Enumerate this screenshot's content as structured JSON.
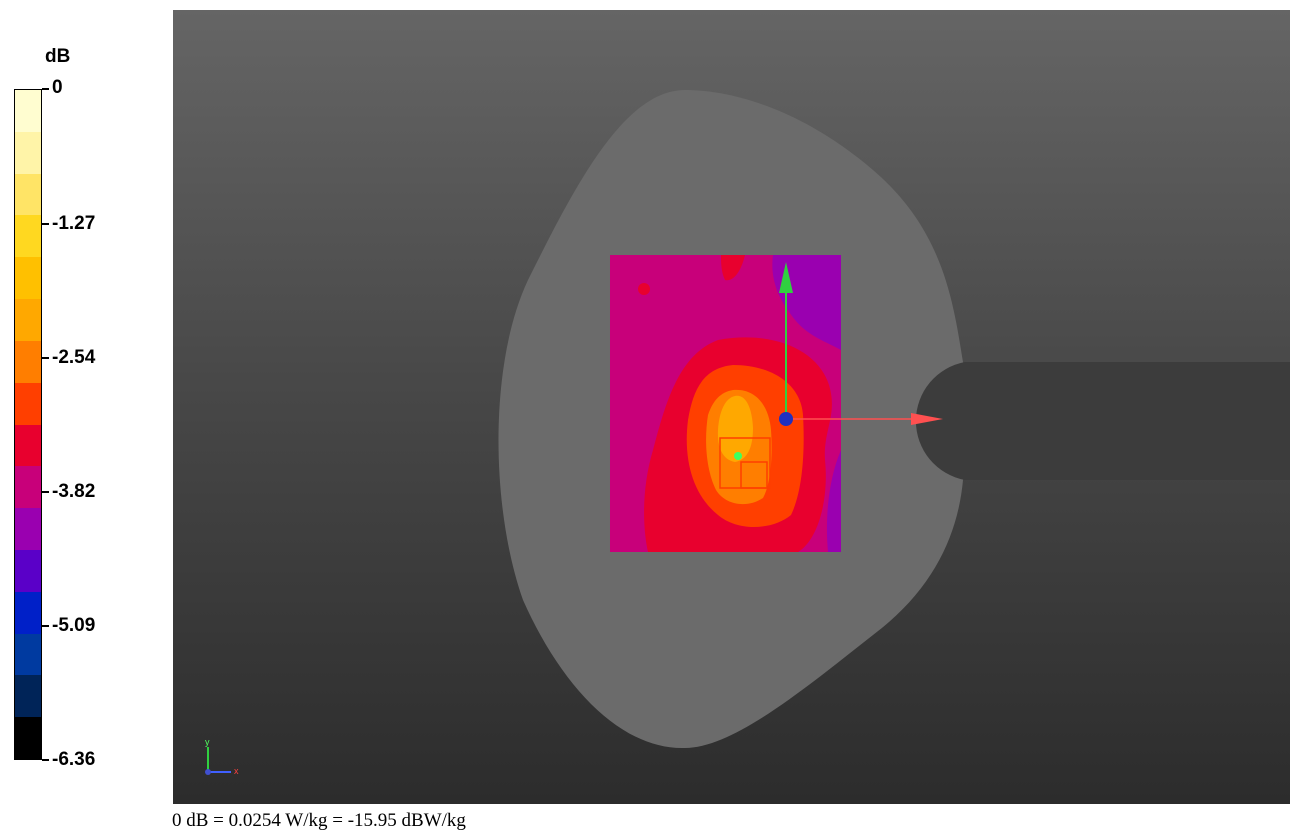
{
  "legend": {
    "unit": "dB",
    "labels": [
      "0",
      "-1.27",
      "-2.54",
      "-3.82",
      "-5.09",
      "-6.36"
    ],
    "colors": [
      "#fffdd0",
      "#fff4a8",
      "#ffe466",
      "#ffd820",
      "#ffc000",
      "#ffa800",
      "#ff7e00",
      "#ff3f00",
      "#e8002e",
      "#c8007a",
      "#9a00b0",
      "#5a00c8",
      "#0020c8",
      "#003aa0",
      "#002458",
      "#000000"
    ]
  },
  "footer": {
    "text": "0 dB = 0.0254 W/kg = -15.95 dBW/kg"
  },
  "viewport": {
    "background_top": "#656565",
    "background_bottom": "#2c2c2c",
    "phantom_color": "#6b6b6b",
    "ear_notch_color": "#3c3c3c",
    "axis_triad": {
      "y_label": "y",
      "x_label": "x"
    }
  },
  "scan_map": {
    "colors": {
      "background": "#c8007a",
      "purple": "#9a00b0",
      "red_mid": "#e8002e",
      "red_high": "#ff3f00",
      "orange": "#ff7e00",
      "orange_peak": "#ffa800",
      "hotspot": "#3cff60",
      "probe_y_arrow": "#30d040",
      "probe_x_arrow": "#ff5050",
      "probe_center": "#2030c0"
    }
  }
}
